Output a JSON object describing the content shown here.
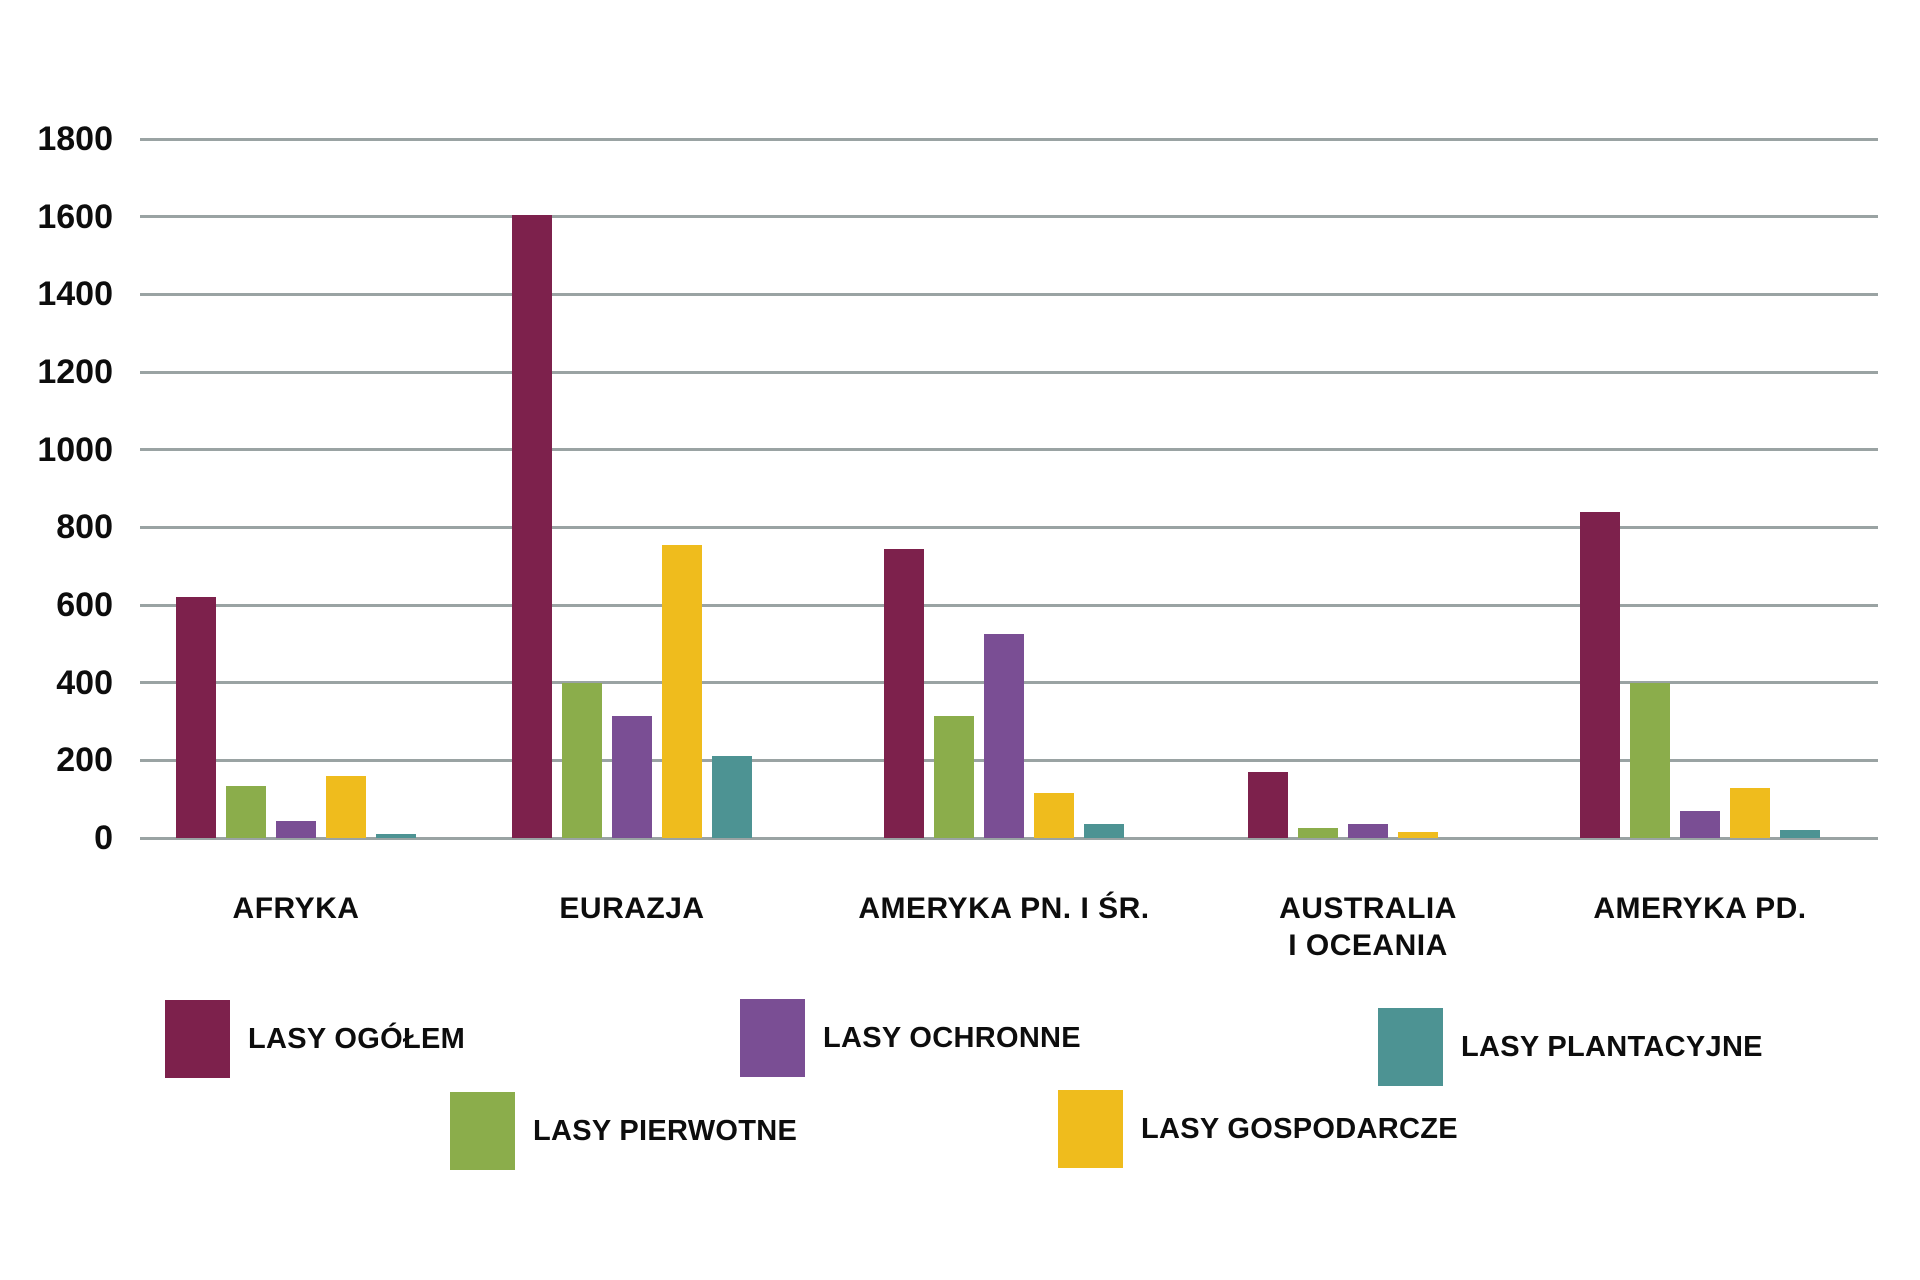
{
  "chart_data": {
    "type": "bar",
    "title": "",
    "xlabel": "",
    "ylabel": "",
    "ylim": [
      0,
      1800
    ],
    "ytick_step": 200,
    "ytick_labels": [
      "0",
      "200",
      "400",
      "600",
      "800",
      "1000",
      "1200",
      "1400",
      "1600",
      "1800"
    ],
    "grid": true,
    "gridline_color": "#9aa3a3",
    "legend_position": "bottom",
    "categories": [
      "AFRYKA",
      "EURAZJA",
      "AMERYKA PN. I ŚR.",
      "AUSTRALIA\nI OCEANIA",
      "AMERYKA PD."
    ],
    "series": [
      {
        "name": "LASY OGÓŁEM",
        "color": "#7D214C",
        "values": [
          620,
          1605,
          745,
          170,
          840
        ]
      },
      {
        "name": "LASY PIERWOTNE",
        "color": "#8BAD4B",
        "values": [
          135,
          400,
          315,
          25,
          400
        ]
      },
      {
        "name": "LASY OCHRONNE",
        "color": "#7A4E94",
        "values": [
          45,
          315,
          525,
          35,
          70
        ]
      },
      {
        "name": "LASY GOSPODARCZE",
        "color": "#EFBC1D",
        "values": [
          160,
          755,
          115,
          15,
          130
        ]
      },
      {
        "name": "LASY PLANTACYJNE",
        "color": "#4D9393",
        "values": [
          10,
          210,
          35,
          0,
          20
        ]
      }
    ]
  },
  "legend": {
    "rows": [
      {
        "items": [
          "LASY OGÓŁEM",
          "LASY OCHRONNE",
          "LASY PLANTACYJNE"
        ]
      },
      {
        "items": [
          "LASY PIERWOTNE",
          "LASY GOSPODARCZE"
        ]
      }
    ]
  }
}
